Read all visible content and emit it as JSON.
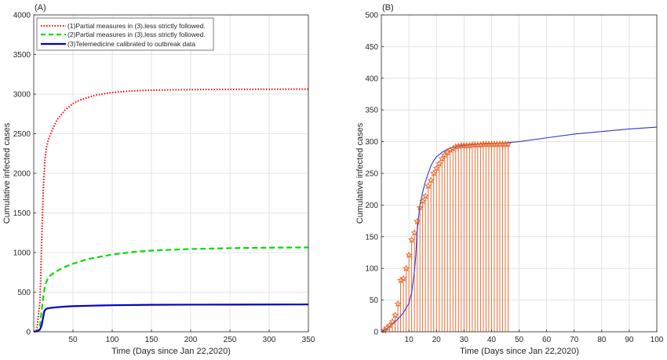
{
  "chart_data": [
    {
      "panel": "(A)",
      "type": "line",
      "xlabel": "Time (Days since Jan 22,2020)",
      "ylabel": "Cumulative infected cases",
      "xlim": [
        0,
        350
      ],
      "ylim": [
        0,
        4000
      ],
      "xticks": [
        50,
        100,
        150,
        200,
        250,
        300,
        350
      ],
      "yticks": [
        0,
        500,
        1000,
        1500,
        2000,
        2500,
        3000,
        3500,
        4000
      ],
      "grid": true,
      "legend_position": "top-left",
      "series": [
        {
          "name": "(1)Partial measures in (3),less strictly followed.",
          "color": "#ff0000",
          "style": "dotted",
          "x": [
            0,
            4,
            8,
            10,
            12,
            14,
            16,
            18,
            20,
            25,
            30,
            40,
            50,
            60,
            80,
            100,
            125,
            150,
            200,
            250,
            300,
            350
          ],
          "y": [
            0,
            25,
            400,
            1100,
            1750,
            2150,
            2320,
            2400,
            2460,
            2580,
            2680,
            2800,
            2880,
            2930,
            2990,
            3020,
            3040,
            3050,
            3057,
            3060,
            3062,
            3063
          ]
        },
        {
          "name": "(2)Partial measures in (3),less strictly followed.",
          "color": "#00dd00",
          "style": "dashed",
          "x": [
            0,
            5,
            8,
            10,
            12,
            14,
            16,
            18,
            20,
            25,
            30,
            40,
            50,
            70,
            100,
            125,
            150,
            200,
            250,
            300,
            350
          ],
          "y": [
            0,
            15,
            80,
            260,
            430,
            560,
            630,
            670,
            700,
            740,
            770,
            820,
            860,
            920,
            975,
            1005,
            1025,
            1045,
            1055,
            1062,
            1065
          ]
        },
        {
          "name": "(3)Telemedicine calibrated to outbreak data",
          "color": "#0000cc",
          "style": "solid",
          "x": [
            0,
            5,
            8,
            10,
            12,
            13,
            14,
            16,
            18,
            20,
            25,
            30,
            40,
            50,
            75,
            100,
            150,
            200,
            250,
            300,
            350
          ],
          "y": [
            0,
            8,
            30,
            80,
            180,
            240,
            270,
            290,
            295,
            300,
            305,
            310,
            318,
            323,
            330,
            335,
            340,
            342,
            343,
            344,
            345
          ]
        }
      ]
    },
    {
      "panel": "(B)",
      "type": "line",
      "xlabel": "Time (Days since Jan 22,2020)",
      "ylabel": "Cumulative infected cases",
      "xlim": [
        0,
        100
      ],
      "ylim": [
        0,
        500
      ],
      "xticks": [
        10,
        20,
        30,
        40,
        50,
        60,
        70,
        80,
        90,
        100
      ],
      "yticks": [
        0,
        50,
        100,
        150,
        200,
        250,
        300,
        350,
        400,
        450,
        500
      ],
      "grid": true,
      "fit_curve": {
        "color": "#3333dd",
        "x": [
          0,
          2,
          4,
          6,
          8,
          10,
          11,
          12,
          12.5,
          13,
          13.5,
          14,
          15,
          16,
          17,
          18,
          19,
          20,
          22,
          24,
          26,
          28,
          30,
          35,
          40,
          45,
          50,
          60,
          70,
          80,
          90,
          100
        ],
        "y": [
          0,
          5,
          12,
          20,
          30,
          45,
          62,
          95,
          120,
          160,
          180,
          200,
          220,
          237,
          250,
          262,
          270,
          276,
          283,
          288,
          291,
          293,
          294,
          296,
          297,
          298,
          300,
          306,
          312,
          316,
          320,
          323
        ]
      },
      "data_points": {
        "color": "#e86020",
        "marker": "star",
        "stems": true,
        "x": [
          1,
          2,
          3,
          4,
          5,
          6,
          7,
          8,
          9,
          10,
          11,
          12,
          13,
          14,
          15,
          16,
          17,
          18,
          19,
          20,
          21,
          22,
          23,
          24,
          25,
          26,
          27,
          28,
          29,
          30,
          31,
          32,
          33,
          34,
          35,
          36,
          37,
          38,
          39,
          40,
          41,
          42,
          43,
          44,
          45,
          46
        ],
        "y": [
          2,
          6,
          10,
          16,
          26,
          44,
          81,
          84,
          100,
          121,
          145,
          156,
          174,
          196,
          206,
          214,
          230,
          239,
          250,
          258,
          265,
          273,
          279,
          283,
          287,
          289,
          292,
          293,
          294,
          294,
          294,
          294,
          295,
          295,
          295,
          295,
          296,
          296,
          296,
          296,
          296,
          296,
          296,
          296,
          296,
          296
        ]
      }
    }
  ]
}
